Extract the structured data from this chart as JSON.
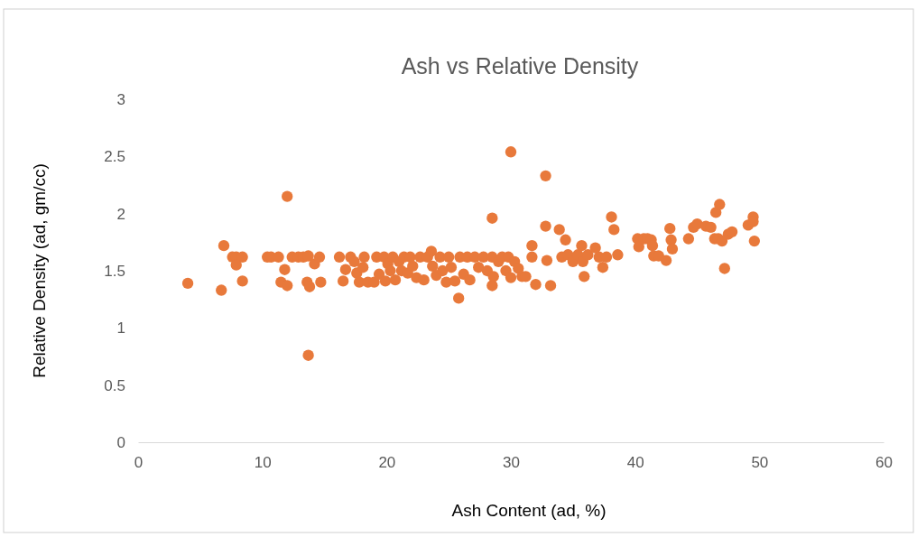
{
  "chart_data": {
    "type": "scatter",
    "title": "Ash vs Relative Density",
    "xlabel": "Ash Content (ad, %)",
    "ylabel": "Relative Density (ad, gm/cc)",
    "xlim": [
      0,
      60
    ],
    "xticks": [
      0,
      10,
      20,
      30,
      40,
      50,
      60
    ],
    "ylim": [
      0,
      3
    ],
    "yticks": [
      0,
      0.5,
      1,
      1.5,
      2,
      2.5,
      3
    ],
    "marker": "circle",
    "grid": false,
    "series": [
      {
        "color": "#e8793b",
        "x": [
          4.0,
          6.7,
          6.9,
          7.6,
          7.9,
          8.4,
          7.9,
          8.4,
          10.4,
          10.7,
          11.3,
          11.5,
          12.0,
          11.8,
          12.0,
          12.4,
          12.9,
          13.3,
          13.7,
          13.6,
          13.8,
          13.7,
          14.2,
          14.6,
          14.7,
          16.2,
          16.5,
          16.7,
          17.1,
          17.4,
          17.6,
          17.8,
          18.1,
          18.2,
          18.5,
          19.0,
          19.2,
          19.4,
          19.8,
          19.9,
          20.1,
          20.3,
          20.5,
          20.7,
          21.0,
          21.2,
          21.4,
          21.7,
          21.9,
          22.1,
          22.4,
          22.7,
          23.0,
          23.3,
          23.6,
          23.7,
          24.0,
          24.3,
          24.5,
          24.8,
          25.0,
          25.2,
          25.5,
          25.8,
          25.9,
          26.2,
          26.5,
          26.7,
          27.1,
          27.4,
          27.8,
          28.1,
          28.5,
          28.5,
          28.5,
          28.6,
          29.0,
          29.3,
          29.6,
          29.8,
          30.0,
          30.0,
          30.3,
          30.6,
          30.9,
          31.2,
          31.7,
          31.7,
          32.0,
          32.8,
          32.8,
          32.9,
          33.2,
          33.9,
          34.1,
          34.4,
          34.6,
          35.0,
          35.4,
          35.7,
          35.8,
          35.9,
          36.2,
          36.8,
          37.1,
          37.4,
          37.7,
          38.1,
          38.3,
          38.6,
          40.2,
          40.3,
          40.7,
          41.0,
          41.3,
          41.5,
          41.4,
          41.9,
          42.5,
          42.8,
          42.9,
          43.0,
          44.3,
          44.7,
          45.0,
          45.7,
          46.1,
          46.4,
          46.5,
          46.8,
          46.7,
          47.0,
          47.2,
          47.5,
          47.8,
          49.1,
          49.5,
          49.5,
          49.6
        ],
        "values": [
          1.39,
          1.33,
          1.72,
          1.62,
          1.62,
          1.62,
          1.55,
          1.41,
          1.62,
          1.62,
          1.62,
          1.4,
          2.15,
          1.51,
          1.37,
          1.62,
          1.62,
          1.62,
          1.63,
          1.4,
          1.36,
          0.76,
          1.56,
          1.62,
          1.4,
          1.62,
          1.41,
          1.51,
          1.62,
          1.58,
          1.48,
          1.4,
          1.53,
          1.62,
          1.4,
          1.4,
          1.62,
          1.47,
          1.62,
          1.41,
          1.56,
          1.5,
          1.62,
          1.42,
          1.58,
          1.5,
          1.62,
          1.48,
          1.62,
          1.54,
          1.44,
          1.62,
          1.42,
          1.62,
          1.67,
          1.54,
          1.46,
          1.62,
          1.5,
          1.4,
          1.62,
          1.53,
          1.41,
          1.26,
          1.62,
          1.47,
          1.62,
          1.42,
          1.62,
          1.53,
          1.62,
          1.5,
          1.62,
          1.96,
          1.37,
          1.45,
          1.58,
          1.62,
          1.5,
          1.62,
          2.54,
          1.44,
          1.58,
          1.52,
          1.45,
          1.45,
          1.72,
          1.62,
          1.38,
          2.33,
          1.89,
          1.59,
          1.37,
          1.86,
          1.62,
          1.77,
          1.64,
          1.58,
          1.64,
          1.72,
          1.58,
          1.45,
          1.64,
          1.7,
          1.62,
          1.53,
          1.62,
          1.97,
          1.86,
          1.64,
          1.78,
          1.71,
          1.78,
          1.78,
          1.77,
          1.63,
          1.72,
          1.63,
          1.59,
          1.87,
          1.77,
          1.69,
          1.78,
          1.88,
          1.91,
          1.89,
          1.88,
          1.78,
          2.01,
          2.08,
          1.78,
          1.76,
          1.52,
          1.82,
          1.84,
          1.9,
          1.97,
          1.93,
          1.76
        ]
      }
    ]
  }
}
